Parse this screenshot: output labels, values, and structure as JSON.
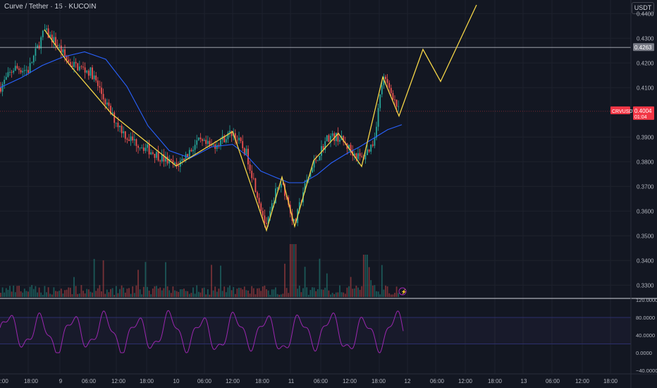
{
  "header": {
    "title": "Curve / Tether · 15 · KUCOIN",
    "currency_button": "USDT"
  },
  "colors": {
    "background": "#131722",
    "up": "#26a69a",
    "down": "#ef5350",
    "ma": "#2962ff",
    "projection": "#f5d547",
    "stoch": "#9c27b0",
    "hline": "#b2b5be",
    "price_tag": "#f23645"
  },
  "price_axis": {
    "ticks": [
      "0.4400",
      "0.4300",
      "0.4200",
      "0.4100",
      "0.3900",
      "0.3800",
      "0.3700",
      "0.3600",
      "0.3500",
      "0.3400",
      "0.3300"
    ],
    "ylim": [
      0.3255,
      0.4455
    ]
  },
  "osc_axis": {
    "ticks": [
      "120.0000",
      "80.0000",
      "40.0000",
      "0.0000",
      "−40.0000"
    ]
  },
  "time_axis": {
    "labels": [
      "2:00",
      "18:00",
      "9",
      "06:00",
      "12:00",
      "18:00",
      "10",
      "06:00",
      "12:00",
      "18:00",
      "11",
      "06:00",
      "12:00",
      "18:00",
      "12",
      "06:00",
      "12:00",
      "18:00",
      "13",
      "06:00",
      "12:00",
      "18:00"
    ]
  },
  "horizontal_level": {
    "label": "0.4263",
    "value": 0.4263
  },
  "last_price": {
    "symbol": "CRVUSDT",
    "value": 0.4004,
    "label": "0.4004",
    "countdown": "01:04"
  },
  "chart_data": [
    {
      "type": "line",
      "name": "zigzag",
      "x": [
        63,
        98,
        158,
        250,
        330,
        378,
        400,
        418,
        445,
        480,
        513,
        543,
        566,
        600,
        625,
        676
      ],
      "y": [
        0.4335,
        0.4195,
        0.3995,
        0.3783,
        0.3922,
        0.3522,
        0.3738,
        0.3538,
        0.3805,
        0.3915,
        0.3781,
        0.4143,
        0.3985,
        0.4255,
        0.4125,
        0.4435
      ]
    },
    {
      "type": "line",
      "name": "moving-average",
      "x": [
        0,
        30,
        60,
        90,
        120,
        150,
        180,
        210,
        240,
        270,
        300,
        330,
        350,
        370,
        390,
        410,
        430,
        450,
        470,
        490,
        510,
        530,
        550,
        570
      ],
      "y": [
        0.41,
        0.414,
        0.419,
        0.4225,
        0.4245,
        0.4215,
        0.4105,
        0.3945,
        0.3845,
        0.3815,
        0.386,
        0.387,
        0.3825,
        0.3762,
        0.3738,
        0.3715,
        0.3715,
        0.3748,
        0.3795,
        0.383,
        0.386,
        0.3895,
        0.393,
        0.395
      ]
    },
    {
      "type": "bar",
      "name": "volume",
      "ylim": [
        0,
        100
      ]
    },
    {
      "type": "line",
      "name": "stochastic",
      "ylim": [
        -40,
        120
      ],
      "bands": [
        80,
        20
      ]
    }
  ]
}
